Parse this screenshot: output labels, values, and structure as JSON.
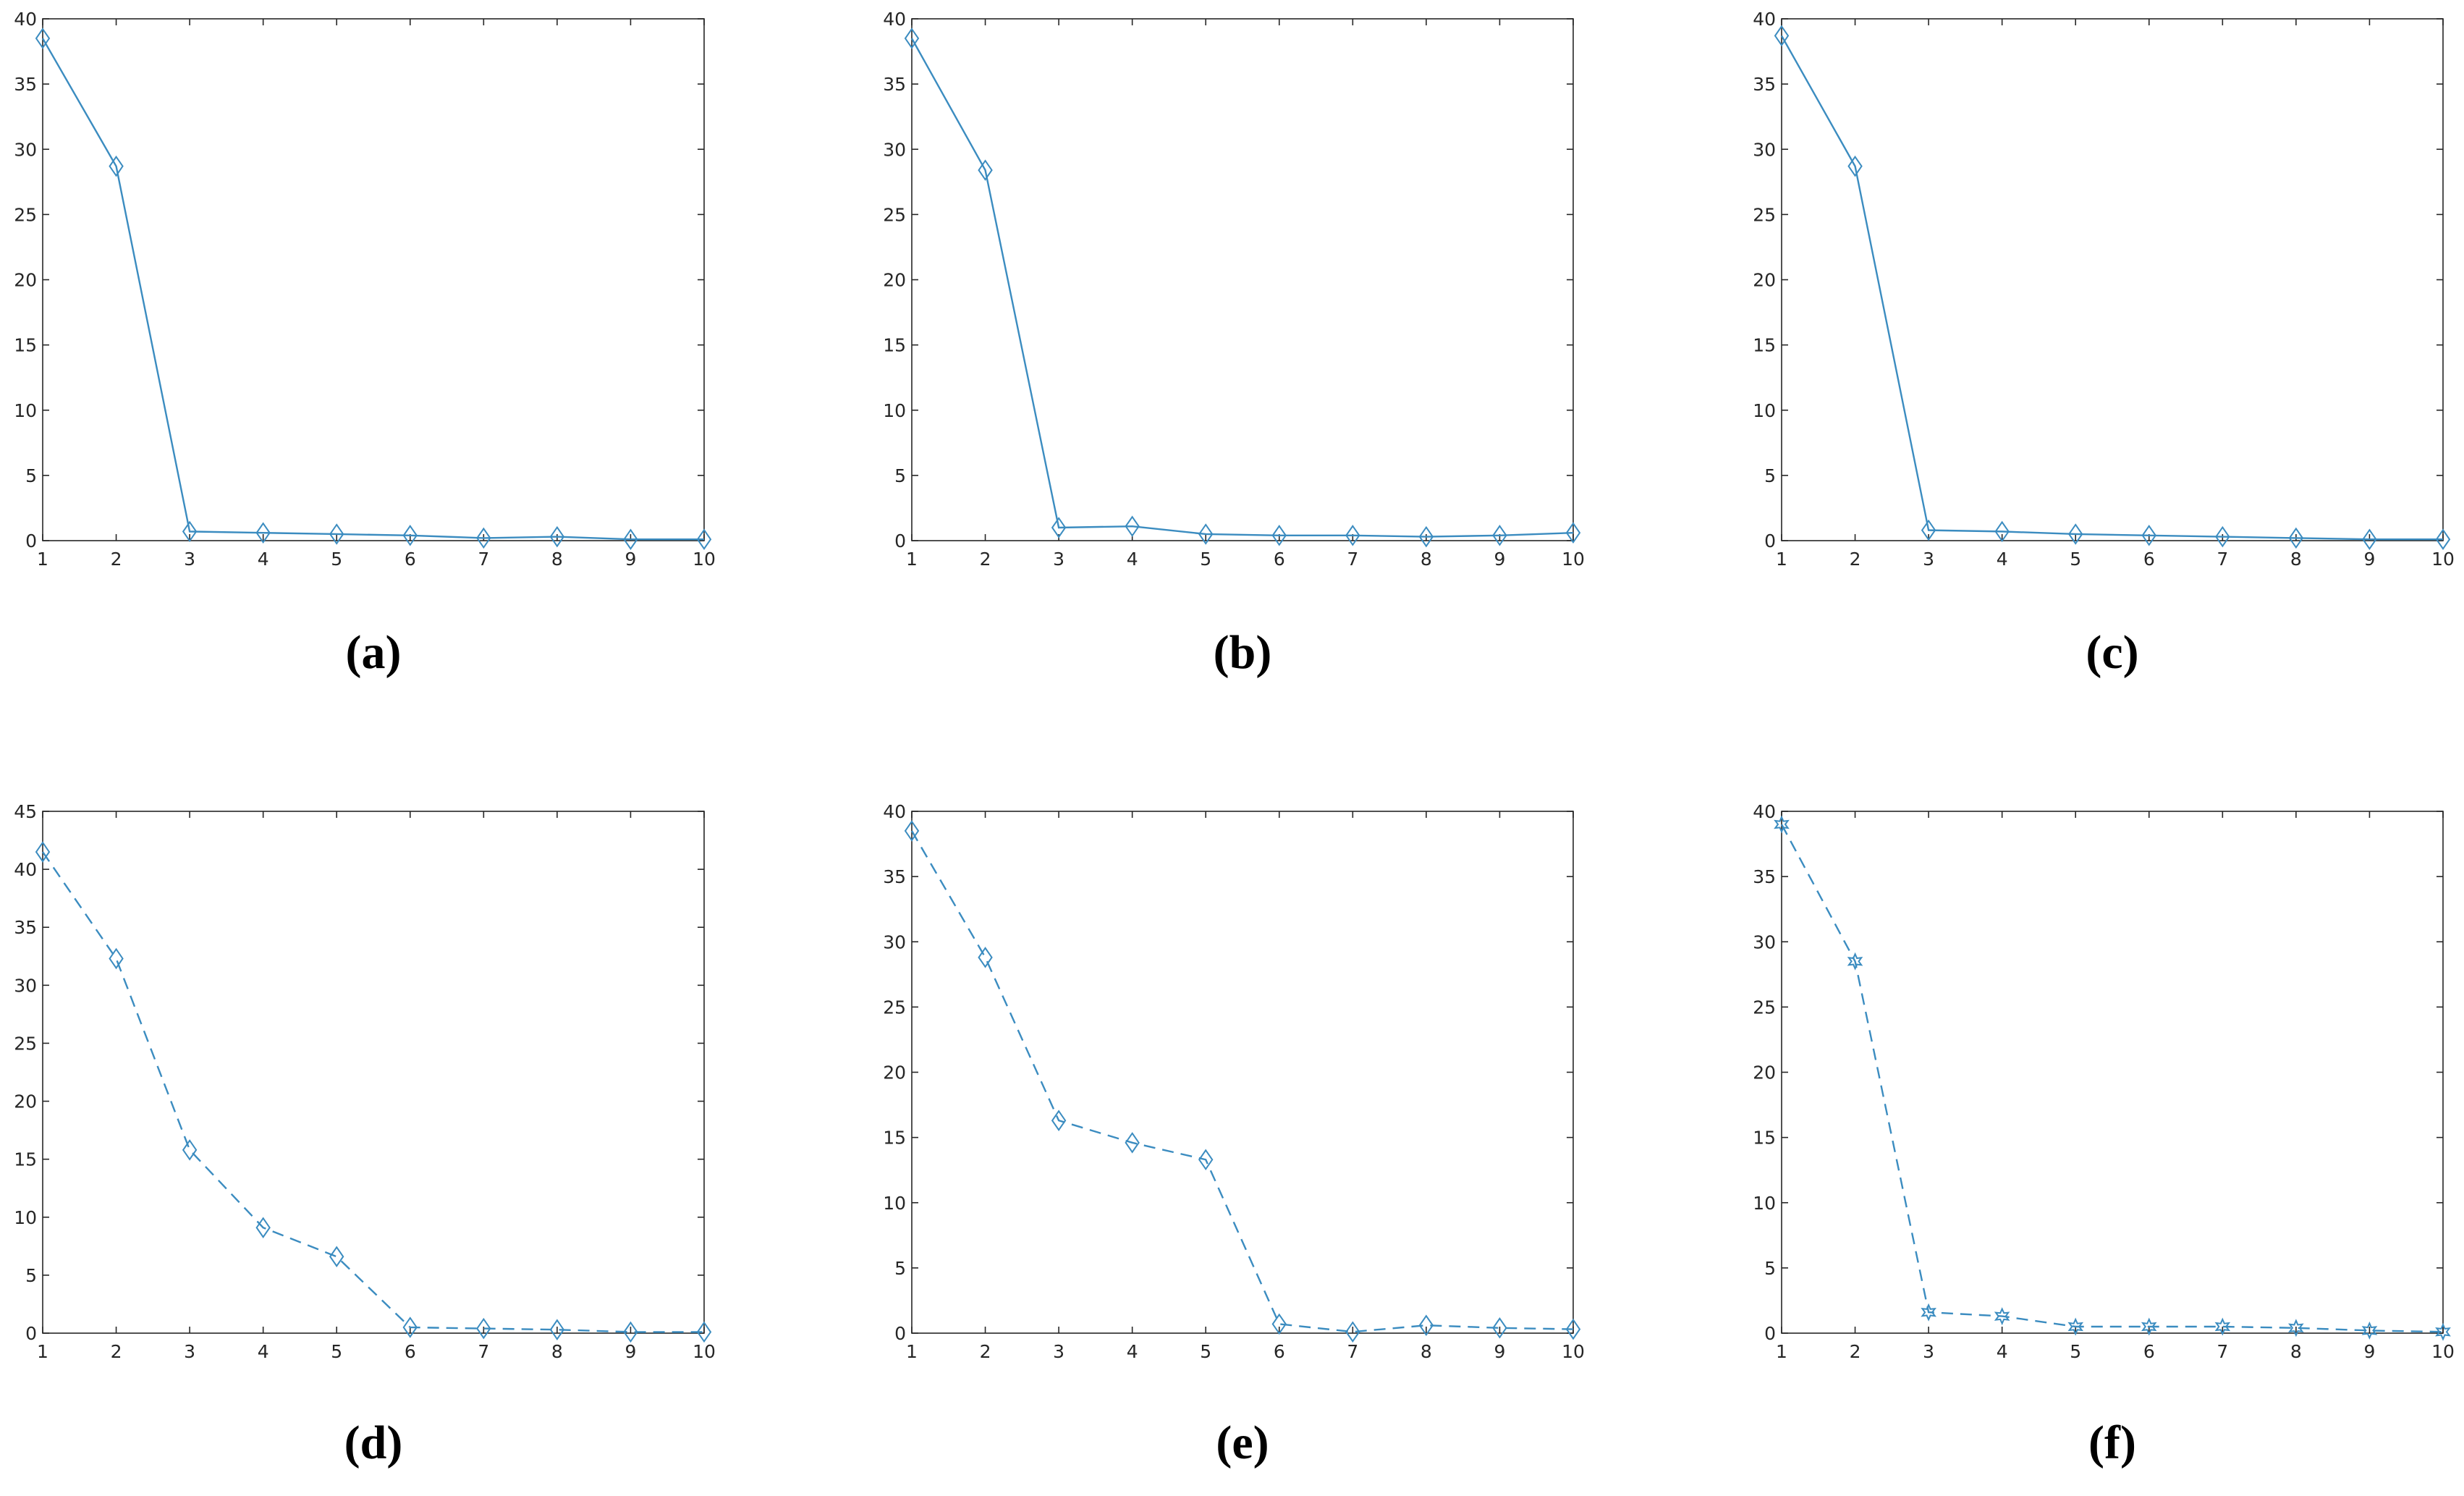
{
  "chart_data": [
    {
      "type": "line",
      "label": "(a)",
      "x": [
        1,
        2,
        3,
        4,
        5,
        6,
        7,
        8,
        9,
        10
      ],
      "xlim": [
        1,
        10
      ],
      "xticks": [
        1,
        2,
        3,
        4,
        5,
        6,
        7,
        8,
        9,
        10
      ],
      "ylim": [
        0,
        40
      ],
      "yticks": [
        0,
        5,
        10,
        15,
        20,
        25,
        30,
        35,
        40
      ],
      "line_style": "solid",
      "marker": "diamond",
      "series": [
        {
          "color": "#3b8cc0",
          "values": [
            38.5,
            28.7,
            0.7,
            0.6,
            0.5,
            0.4,
            0.2,
            0.3,
            0.1,
            0.1
          ]
        }
      ]
    },
    {
      "type": "line",
      "label": "(b)",
      "x": [
        1,
        2,
        3,
        4,
        5,
        6,
        7,
        8,
        9,
        10
      ],
      "xlim": [
        1,
        10
      ],
      "xticks": [
        1,
        2,
        3,
        4,
        5,
        6,
        7,
        8,
        9,
        10
      ],
      "ylim": [
        0,
        40
      ],
      "yticks": [
        0,
        5,
        10,
        15,
        20,
        25,
        30,
        35,
        40
      ],
      "line_style": "solid",
      "marker": "diamond",
      "series": [
        {
          "color": "#3b8cc0",
          "values": [
            38.5,
            28.4,
            1.0,
            1.1,
            0.5,
            0.4,
            0.4,
            0.3,
            0.4,
            0.6
          ]
        }
      ]
    },
    {
      "type": "line",
      "label": "(c)",
      "x": [
        1,
        2,
        3,
        4,
        5,
        6,
        7,
        8,
        9,
        10
      ],
      "xlim": [
        1,
        10
      ],
      "xticks": [
        1,
        2,
        3,
        4,
        5,
        6,
        7,
        8,
        9,
        10
      ],
      "ylim": [
        0,
        40
      ],
      "yticks": [
        0,
        5,
        10,
        15,
        20,
        25,
        30,
        35,
        40
      ],
      "line_style": "solid",
      "marker": "diamond",
      "series": [
        {
          "color": "#3b8cc0",
          "values": [
            38.7,
            28.7,
            0.8,
            0.7,
            0.5,
            0.4,
            0.3,
            0.2,
            0.1,
            0.1
          ]
        }
      ]
    },
    {
      "type": "line",
      "label": "(d)",
      "x": [
        1,
        2,
        3,
        4,
        5,
        6,
        7,
        8,
        9,
        10
      ],
      "xlim": [
        1,
        10
      ],
      "xticks": [
        1,
        2,
        3,
        4,
        5,
        6,
        7,
        8,
        9,
        10
      ],
      "ylim": [
        0,
        45
      ],
      "yticks": [
        0,
        5,
        10,
        15,
        20,
        25,
        30,
        35,
        40,
        45
      ],
      "line_style": "dashed",
      "marker": "diamond",
      "series": [
        {
          "color": "#3b8cc0",
          "values": [
            41.5,
            32.3,
            15.8,
            9.1,
            6.6,
            0.5,
            0.4,
            0.3,
            0.1,
            0.1
          ]
        }
      ]
    },
    {
      "type": "line",
      "label": "(e)",
      "x": [
        1,
        2,
        3,
        4,
        5,
        6,
        7,
        8,
        9,
        10
      ],
      "xlim": [
        1,
        10
      ],
      "xticks": [
        1,
        2,
        3,
        4,
        5,
        6,
        7,
        8,
        9,
        10
      ],
      "ylim": [
        0,
        40
      ],
      "yticks": [
        0,
        5,
        10,
        15,
        20,
        25,
        30,
        35,
        40
      ],
      "line_style": "dashed",
      "marker": "diamond",
      "series": [
        {
          "color": "#3b8cc0",
          "values": [
            38.5,
            28.8,
            16.3,
            14.6,
            13.3,
            0.7,
            0.1,
            0.6,
            0.4,
            0.3
          ]
        }
      ]
    },
    {
      "type": "line",
      "label": "(f)",
      "x": [
        1,
        2,
        3,
        4,
        5,
        6,
        7,
        8,
        9,
        10
      ],
      "xlim": [
        1,
        10
      ],
      "xticks": [
        1,
        2,
        3,
        4,
        5,
        6,
        7,
        8,
        9,
        10
      ],
      "ylim": [
        0,
        40
      ],
      "yticks": [
        0,
        5,
        10,
        15,
        20,
        25,
        30,
        35,
        40
      ],
      "line_style": "dashed",
      "marker": "hexagram",
      "series": [
        {
          "color": "#3b8cc0",
          "values": [
            39.0,
            28.5,
            1.6,
            1.3,
            0.5,
            0.5,
            0.5,
            0.4,
            0.2,
            0.1
          ]
        }
      ]
    }
  ]
}
